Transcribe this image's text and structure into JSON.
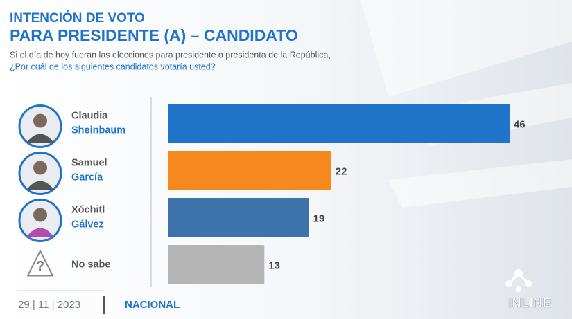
{
  "chart_data": {
    "type": "bar",
    "orientation": "horizontal",
    "title": "INTENCIÓN DE VOTO",
    "subtitle": "PARA PRESIDENTE (A) – CANDIDATO",
    "question": [
      "Si el día de hoy fueran las elecciones para presidente o presidenta de la República,",
      "¿Por cuál de los siguientes  candidatos votaría usted?"
    ],
    "categories": [
      [
        "Claudia",
        "Sheinbaum"
      ],
      [
        "Samuel",
        "García"
      ],
      [
        "Xóchitl",
        "Gálvez"
      ],
      [
        "No sabe"
      ]
    ],
    "values": [
      46,
      22,
      19,
      13
    ],
    "colors": [
      "#1f74c9",
      "#f5891d",
      "#3d72ab",
      "#b5b5b5"
    ],
    "unknown_icon": "?",
    "date": "29 | 11 | 2023",
    "scope": "NACIONAL",
    "brand": "INLINE"
  }
}
